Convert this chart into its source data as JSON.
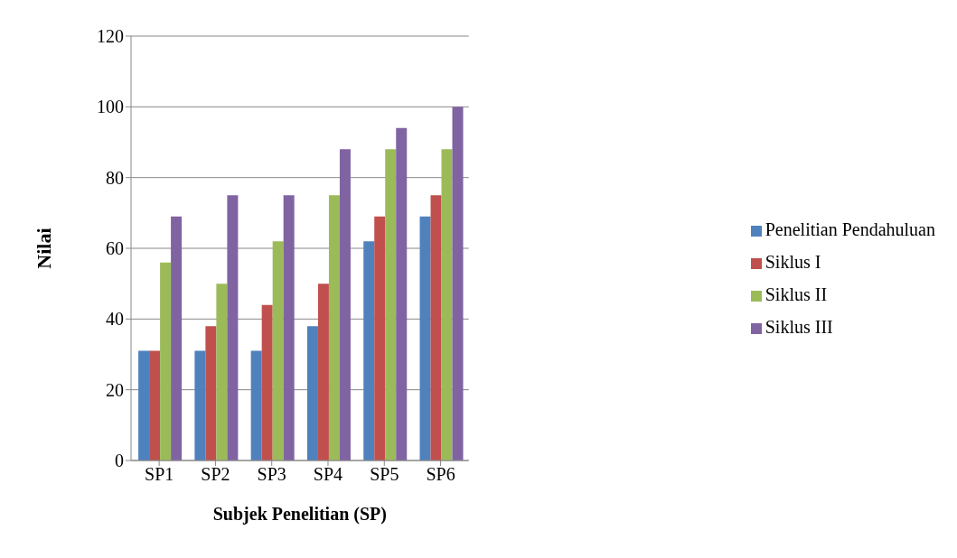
{
  "chart_data": {
    "type": "bar",
    "xlabel": "Subjek Penelitian (SP)",
    "ylabel": "Nilai",
    "categories": [
      "SP1",
      "SP2",
      "SP3",
      "SP4",
      "SP5",
      "SP6"
    ],
    "series": [
      {
        "name": "Penelitian Pendahuluan",
        "color": "#4f81bd",
        "values": [
          31,
          31,
          31,
          38,
          62,
          69
        ]
      },
      {
        "name": "Siklus I",
        "color": "#c0504d",
        "values": [
          31,
          38,
          44,
          50,
          69,
          75
        ]
      },
      {
        "name": "Siklus II",
        "color": "#9bbb59",
        "values": [
          56,
          50,
          62,
          75,
          88,
          88
        ]
      },
      {
        "name": "Siklus III",
        "color": "#8064a2",
        "values": [
          69,
          75,
          75,
          88,
          94,
          100
        ]
      }
    ],
    "ylim": [
      0,
      120
    ],
    "yticks": [
      0,
      20,
      40,
      60,
      80,
      100,
      120
    ],
    "grid": "y",
    "legend": "right"
  }
}
